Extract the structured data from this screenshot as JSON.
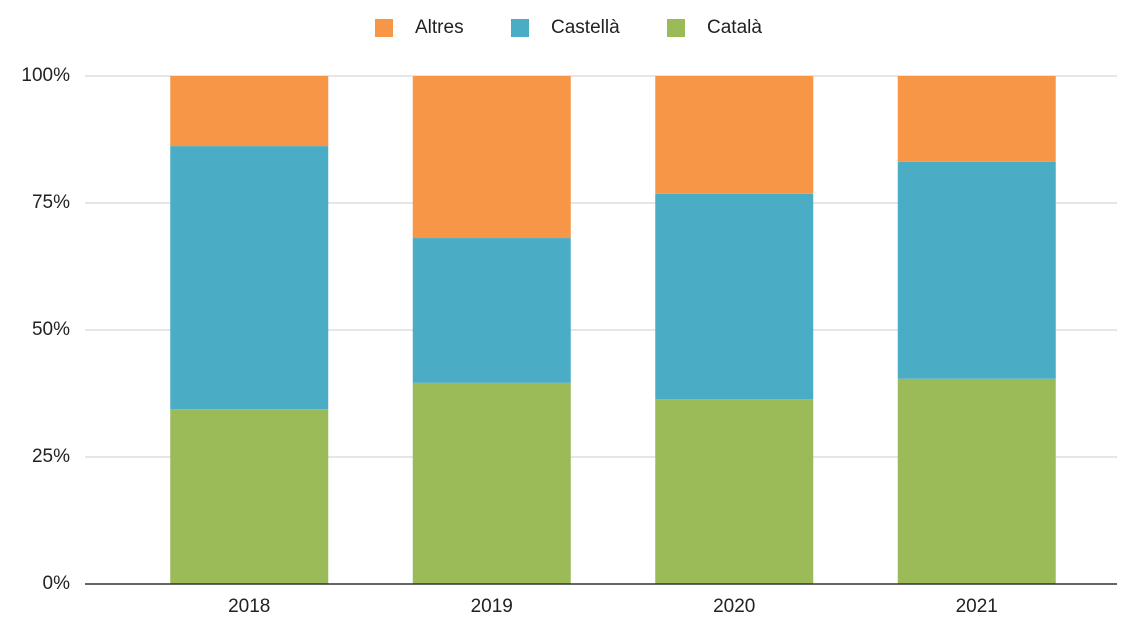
{
  "chart_data": {
    "type": "stacked_bar",
    "categories": [
      "2018",
      "2019",
      "2020",
      "2021"
    ],
    "series": [
      {
        "name": "Altres",
        "color": "#f79646",
        "values": [
          13.8,
          31.9,
          23.2,
          16.9
        ]
      },
      {
        "name": "Castellà",
        "color": "#4bacc6",
        "values": [
          51.8,
          28.5,
          40.4,
          42.7
        ]
      },
      {
        "name": "Català",
        "color": "#9bbb59",
        "values": [
          34.4,
          39.6,
          36.4,
          40.4
        ]
      }
    ],
    "ylim": [
      0,
      100
    ],
    "yticks": [
      {
        "value": 0,
        "label": "0%"
      },
      {
        "value": 25,
        "label": "25%"
      },
      {
        "value": 50,
        "label": "50%"
      },
      {
        "value": 75,
        "label": "75%"
      },
      {
        "value": 100,
        "label": "100%"
      }
    ],
    "grid": true,
    "legend": "top"
  }
}
